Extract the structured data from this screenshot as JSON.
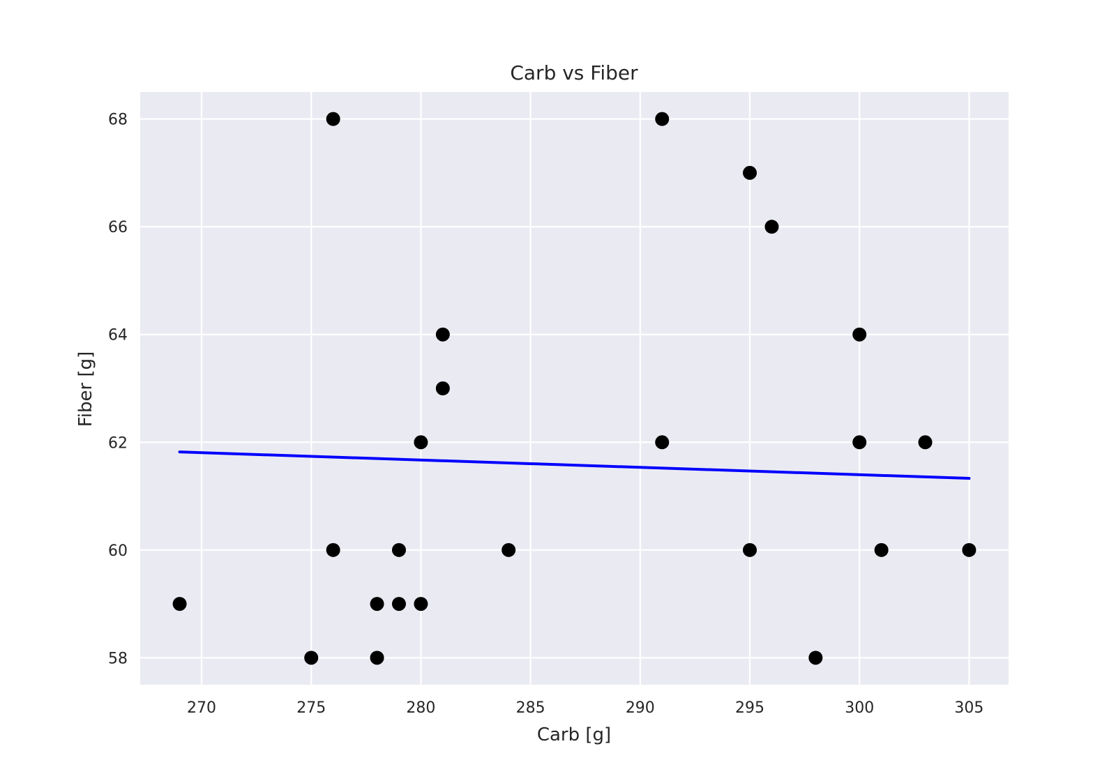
{
  "chart_data": {
    "type": "scatter",
    "title": "Carb vs Fiber",
    "xlabel": "Carb [g]",
    "ylabel": "Fiber [g]",
    "xlim": [
      267.2,
      306.8
    ],
    "ylim": [
      57.5,
      68.5
    ],
    "xticks": [
      270,
      275,
      280,
      285,
      290,
      295,
      300,
      305
    ],
    "yticks": [
      58,
      60,
      62,
      64,
      66,
      68
    ],
    "grid": true,
    "colors": {
      "background": "#EAEAF2",
      "grid": "#FFFFFF",
      "points": "#000000",
      "trend": "#0000FF"
    },
    "points": [
      {
        "x": 269,
        "y": 59
      },
      {
        "x": 275,
        "y": 58
      },
      {
        "x": 276,
        "y": 68
      },
      {
        "x": 276,
        "y": 60
      },
      {
        "x": 278,
        "y": 59
      },
      {
        "x": 278,
        "y": 58
      },
      {
        "x": 279,
        "y": 60
      },
      {
        "x": 279,
        "y": 59
      },
      {
        "x": 280,
        "y": 62
      },
      {
        "x": 280,
        "y": 59
      },
      {
        "x": 281,
        "y": 64
      },
      {
        "x": 281,
        "y": 63
      },
      {
        "x": 284,
        "y": 60
      },
      {
        "x": 291,
        "y": 68
      },
      {
        "x": 291,
        "y": 62
      },
      {
        "x": 295,
        "y": 67
      },
      {
        "x": 295,
        "y": 60
      },
      {
        "x": 296,
        "y": 66
      },
      {
        "x": 298,
        "y": 58
      },
      {
        "x": 300,
        "y": 64
      },
      {
        "x": 300,
        "y": 62
      },
      {
        "x": 301,
        "y": 60
      },
      {
        "x": 303,
        "y": 62
      },
      {
        "x": 305,
        "y": 60
      }
    ],
    "trend_line": [
      {
        "x": 269,
        "y": 61.82
      },
      {
        "x": 305,
        "y": 61.33
      }
    ]
  }
}
